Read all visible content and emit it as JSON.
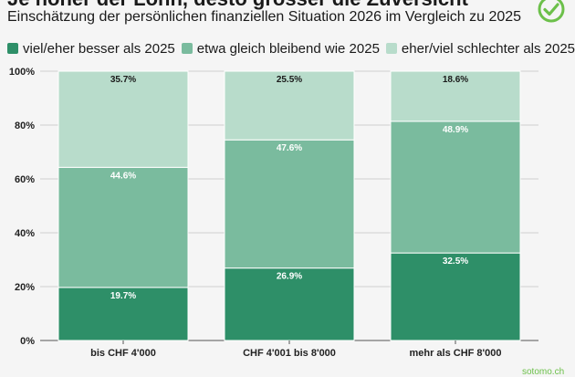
{
  "header": {
    "title": "Je höher der Lohn, desto grösser die Zuversicht",
    "subtitle": "Einschätzung der persönlichen finanziellen Situation 2026 im Vergleich zu 2025"
  },
  "brand": {
    "text": "sotomo.ch",
    "logo_icon": "check-circle-icon",
    "color": "#6cc04a"
  },
  "colors": {
    "better": "#2e8f68",
    "same": "#7abb9e",
    "worse": "#b8dccb"
  },
  "chart_data": {
    "type": "bar",
    "stacked": true,
    "title": "Je höher der Lohn, desto grösser die Zuversicht",
    "subtitle": "Einschätzung der persönlichen finanziellen Situation 2026 im Vergleich zu 2025",
    "categories": [
      "bis CHF 4'000",
      "CHF 4'001 bis 8'000",
      "mehr als CHF 8'000"
    ],
    "series": [
      {
        "name": "viel/eher besser als 2025",
        "values": [
          19.7,
          26.9,
          32.5
        ],
        "labels": [
          "19.7%",
          "26.9%",
          "32.5%"
        ]
      },
      {
        "name": "etwa gleich bleibend wie 2025",
        "values": [
          44.6,
          47.6,
          48.9
        ],
        "labels": [
          "44.6%",
          "47.6%",
          "48.9%"
        ]
      },
      {
        "name": "eher/viel schlechter als 2025",
        "values": [
          35.7,
          25.5,
          18.6
        ],
        "labels": [
          "35.7%",
          "25.5%",
          "18.6%"
        ]
      }
    ],
    "yticks": [
      0,
      20,
      40,
      60,
      80,
      100
    ],
    "ytick_labels": [
      "0%",
      "20%",
      "40%",
      "60%",
      "80%",
      "100%"
    ],
    "ylim": [
      0,
      100
    ],
    "grid": true,
    "legend": "top-left"
  }
}
